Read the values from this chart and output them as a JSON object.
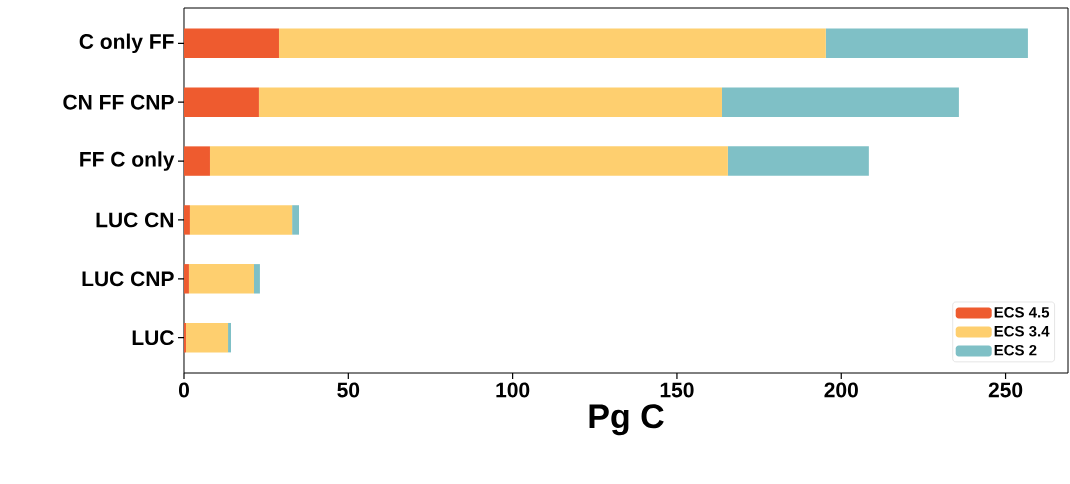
{
  "chart_data": {
    "type": "bar",
    "orientation": "horizontal",
    "stacked": true,
    "categories": [
      "C only FF",
      "CN FF CNP",
      "FF C only",
      "LUC CN",
      "LUC CNP",
      "LUC"
    ],
    "series": [
      {
        "name": "ECS 4.5",
        "color": "#ee5b2f",
        "values": [
          28.9,
          22.8,
          7.9,
          1.8,
          1.5,
          0.6
        ]
      },
      {
        "name": "ECS 3.4",
        "color": "#fecf6f",
        "values": [
          166.4,
          140.9,
          157.6,
          31.1,
          19.8,
          12.8
        ]
      },
      {
        "name": "ECS 2",
        "color": "#7fc0c6",
        "values": [
          61.5,
          72.1,
          42.9,
          2.1,
          1.8,
          0.9
        ]
      }
    ],
    "xlim": [
      0,
      269
    ],
    "xticks": [
      0,
      50,
      100,
      150,
      200,
      250
    ],
    "xlabel": "Pg C",
    "legend": "bottom right",
    "grid": false
  }
}
